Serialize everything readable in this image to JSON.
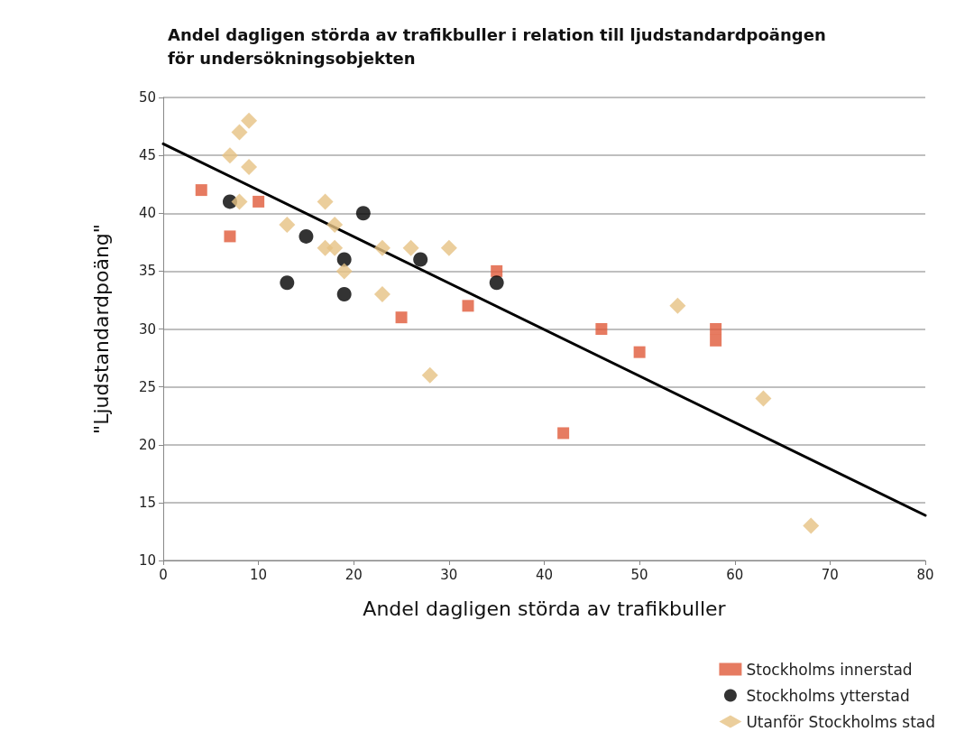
{
  "chart_data": {
    "type": "scatter",
    "title": "Andel dagligen störda av trafikbuller i relation till ljudstandardpoängen\nför undersökningsobjekten",
    "xlabel": "Andel dagligen störda av trafikbuller",
    "ylabel": "\"Ljudstandardpoäng\"",
    "xlim": [
      0,
      80
    ],
    "xticks": [
      0,
      10,
      20,
      30,
      40,
      50,
      60,
      70,
      80
    ],
    "ylim": [
      10,
      50
    ],
    "yticks": [
      10,
      15,
      20,
      25,
      30,
      35,
      40,
      45,
      50
    ],
    "grid": "y",
    "legend": "bottom right",
    "series": [
      {
        "name": "Stockholms innerstad",
        "color": "#e05a3a",
        "marker": "square",
        "x": [
          4,
          7,
          10,
          25,
          32,
          35,
          42,
          46,
          50,
          58,
          58
        ],
        "values": [
          42,
          38,
          41,
          31,
          32,
          35,
          21,
          30,
          28,
          30,
          29
        ]
      },
      {
        "name": "Stockholms ytterstad",
        "color": "#000000",
        "marker": "circle",
        "x": [
          7,
          13,
          15,
          19,
          19,
          21,
          27,
          35
        ],
        "values": [
          41,
          34,
          38,
          36,
          33,
          40,
          36,
          34
        ]
      },
      {
        "name": "Utanför Stockholms stad",
        "color": "#e6c283",
        "marker": "diamond",
        "x": [
          7,
          8,
          9,
          9,
          8,
          13,
          17,
          18,
          17,
          18,
          19,
          23,
          23,
          26,
          30,
          28,
          54,
          63,
          68
        ],
        "values": [
          45,
          47,
          48,
          44,
          41,
          39,
          41,
          39,
          37,
          37,
          35,
          37,
          33,
          37,
          37,
          26,
          32,
          24,
          13
        ]
      },
      {
        "type": "line",
        "color": "#000000",
        "marker": "none",
        "line_style": "solid",
        "x": [
          0,
          80
        ],
        "values": [
          46,
          13.9
        ]
      }
    ]
  }
}
